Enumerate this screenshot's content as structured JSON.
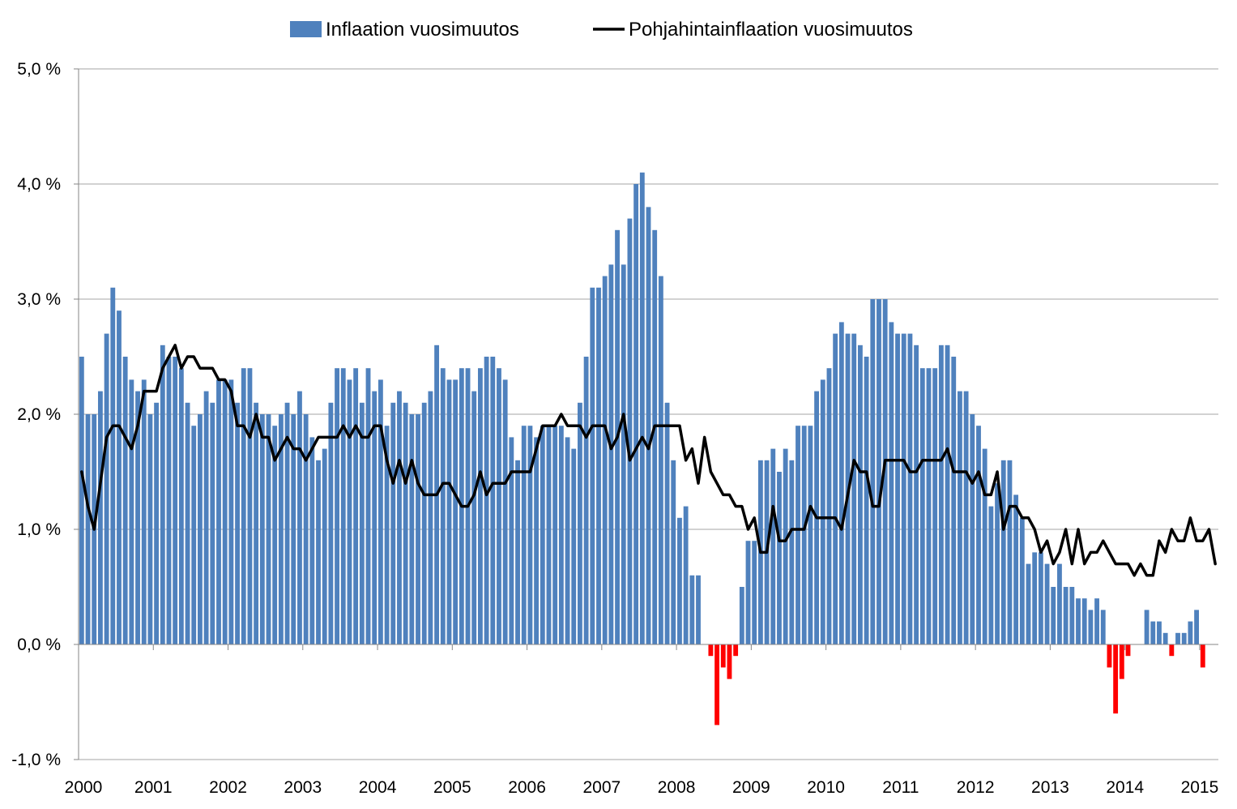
{
  "chart_data": {
    "type": "bar",
    "title": "",
    "xlabel": "",
    "ylabel": "",
    "ylim": [
      -1.0,
      5.0
    ],
    "y_ticks": [
      "5,0 %",
      "4,0 %",
      "3,0 %",
      "2,0 %",
      "1,0 %",
      "0,0 %",
      "-1,0 %"
    ],
    "y_tick_values": [
      5,
      4,
      3,
      2,
      1,
      0,
      -1
    ],
    "x_year_labels": [
      "2000",
      "2001",
      "2002",
      "2003",
      "2004",
      "2005",
      "2006",
      "2007",
      "2008",
      "2009",
      "2010",
      "2011",
      "2012",
      "2013",
      "2014",
      "2015"
    ],
    "months_count": 183,
    "start_month": "2000-01",
    "grid": "horizontal",
    "legend_position": "top",
    "colors": {
      "bar_positive": "#4f81bd",
      "bar_negative": "#ff0000",
      "line": "#000000",
      "grid": "#a6a6a6",
      "axis": "#868686"
    },
    "series": [
      {
        "name": "Inflaation vuosimuutos",
        "kind": "bar",
        "values": [
          2.5,
          2.0,
          2.0,
          2.2,
          2.7,
          3.1,
          2.9,
          2.5,
          2.3,
          2.2,
          2.3,
          2.0,
          2.1,
          2.6,
          2.5,
          2.5,
          2.4,
          2.1,
          1.9,
          2.0,
          2.2,
          2.1,
          2.3,
          2.3,
          2.3,
          2.1,
          2.4,
          2.4,
          2.1,
          2.0,
          2.0,
          1.9,
          2.0,
          2.1,
          2.0,
          2.2,
          2.0,
          1.8,
          1.6,
          1.7,
          2.1,
          2.4,
          2.4,
          2.3,
          2.4,
          2.1,
          2.4,
          2.2,
          2.3,
          1.9,
          2.1,
          2.2,
          2.1,
          2.0,
          2.0,
          2.1,
          2.2,
          2.6,
          2.4,
          2.3,
          2.3,
          2.4,
          2.4,
          2.2,
          2.4,
          2.5,
          2.5,
          2.4,
          2.3,
          1.8,
          1.6,
          1.9,
          1.9,
          1.8,
          1.9,
          1.9,
          1.9,
          1.9,
          1.8,
          1.7,
          2.1,
          2.5,
          3.1,
          3.1,
          3.2,
          3.3,
          3.6,
          3.3,
          3.7,
          4.0,
          4.1,
          3.8,
          3.6,
          3.2,
          2.1,
          1.6,
          1.1,
          1.2,
          0.6,
          0.6,
          0.0,
          -0.1,
          -0.7,
          -0.2,
          -0.3,
          -0.1,
          0.5,
          0.9,
          0.9,
          1.6,
          1.6,
          1.7,
          1.5,
          1.7,
          1.6,
          1.9,
          1.9,
          1.9,
          2.2,
          2.3,
          2.4,
          2.7,
          2.8,
          2.7,
          2.7,
          2.6,
          2.5,
          3.0,
          3.0,
          3.0,
          2.8,
          2.7,
          2.7,
          2.7,
          2.6,
          2.4,
          2.4,
          2.4,
          2.6,
          2.6,
          2.5,
          2.2,
          2.2,
          2.0,
          1.9,
          1.7,
          1.2,
          1.4,
          1.6,
          1.6,
          1.3,
          1.1,
          0.7,
          0.8,
          0.8,
          0.7,
          0.5,
          0.7,
          0.5,
          0.5,
          0.4,
          0.4,
          0.3,
          0.4,
          0.3,
          -0.2,
          -0.6,
          -0.3,
          -0.1,
          0.0,
          0.0,
          0.3,
          0.2,
          0.2,
          0.1,
          -0.1,
          0.1,
          0.1,
          0.2,
          0.3,
          -0.2,
          0.0,
          0.0
        ]
      },
      {
        "name": "Pohjahintainflaation vuosimuutos",
        "kind": "line",
        "values": [
          1.5,
          1.2,
          1.0,
          1.4,
          1.8,
          1.9,
          1.9,
          1.8,
          1.7,
          1.9,
          2.2,
          2.2,
          2.2,
          2.4,
          2.5,
          2.6,
          2.4,
          2.5,
          2.5,
          2.4,
          2.4,
          2.4,
          2.3,
          2.3,
          2.2,
          1.9,
          1.9,
          1.8,
          2.0,
          1.8,
          1.8,
          1.6,
          1.7,
          1.8,
          1.7,
          1.7,
          1.6,
          1.7,
          1.8,
          1.8,
          1.8,
          1.8,
          1.9,
          1.8,
          1.9,
          1.8,
          1.8,
          1.9,
          1.9,
          1.6,
          1.4,
          1.6,
          1.4,
          1.6,
          1.4,
          1.3,
          1.3,
          1.3,
          1.4,
          1.4,
          1.3,
          1.2,
          1.2,
          1.3,
          1.5,
          1.3,
          1.4,
          1.4,
          1.4,
          1.5,
          1.5,
          1.5,
          1.5,
          1.7,
          1.9,
          1.9,
          1.9,
          2.0,
          1.9,
          1.9,
          1.9,
          1.8,
          1.9,
          1.9,
          1.9,
          1.7,
          1.8,
          2.0,
          1.6,
          1.7,
          1.8,
          1.7,
          1.9,
          1.9,
          1.9,
          1.9,
          1.9,
          1.6,
          1.7,
          1.4,
          1.8,
          1.5,
          1.4,
          1.3,
          1.3,
          1.2,
          1.2,
          1.0,
          1.1,
          0.8,
          0.8,
          1.2,
          0.9,
          0.9,
          1.0,
          1.0,
          1.0,
          1.2,
          1.1,
          1.1,
          1.1,
          1.1,
          1.0,
          1.3,
          1.6,
          1.5,
          1.5,
          1.2,
          1.2,
          1.6,
          1.6,
          1.6,
          1.6,
          1.5,
          1.5,
          1.6,
          1.6,
          1.6,
          1.6,
          1.7,
          1.5,
          1.5,
          1.5,
          1.4,
          1.5,
          1.3,
          1.3,
          1.5,
          1.0,
          1.2,
          1.2,
          1.1,
          1.1,
          1.0,
          0.8,
          0.9,
          0.7,
          0.8,
          1.0,
          0.7,
          1.0,
          0.7,
          0.8,
          0.8,
          0.9,
          0.8,
          0.7,
          0.7,
          0.7,
          0.6,
          0.7,
          0.6,
          0.6,
          0.9,
          0.8,
          1.0,
          0.9,
          0.9,
          1.1,
          0.9,
          0.9,
          1.0,
          0.7
        ]
      }
    ]
  }
}
